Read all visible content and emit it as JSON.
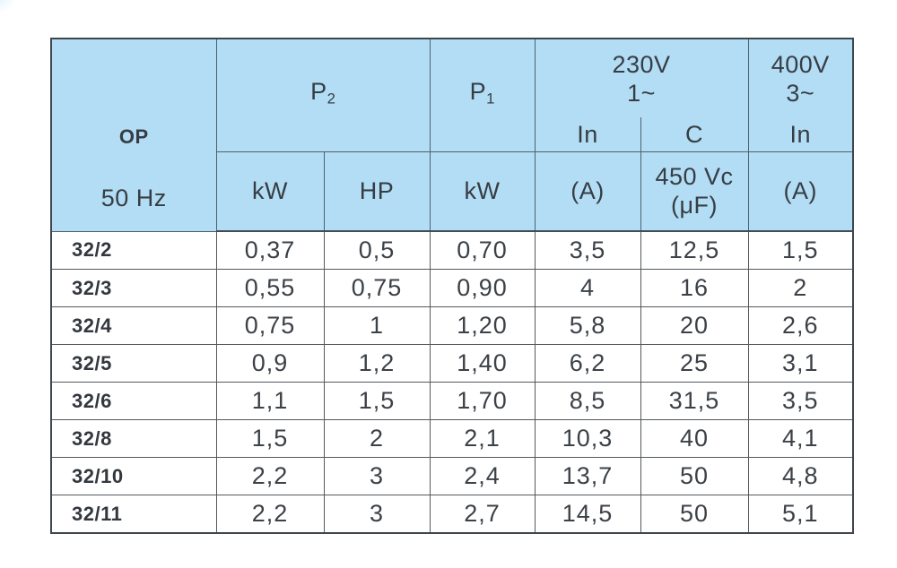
{
  "colors": {
    "header_bg": "#b2ddf4",
    "header_line": "#4d626e",
    "body_line": "#54585c",
    "outer_border": "#3f464d",
    "text": "#3c4147"
  },
  "table": {
    "header": {
      "op_title": "OP",
      "op_freq": "50 Hz",
      "p2_base": "P",
      "p2_sub": "2",
      "p1_base": "P",
      "p1_sub": "1",
      "group_230v_line1": "230V",
      "group_230v_line2": "1~",
      "group_400v_line1": "400V",
      "group_400v_line2": "3~",
      "in_230_label": "In",
      "c_label": "C",
      "in_400_label": "In",
      "p2_kw_unit": "kW",
      "p2_hp_unit": "HP",
      "p1_kw_unit": "kW",
      "in_230_unit": "(A)",
      "c_unit_line1": "450 Vc",
      "c_unit_line2": "(μF)",
      "in_400_unit": "(A)"
    },
    "rows": [
      {
        "model": "32/2",
        "p2_kw": "0,37",
        "p2_hp": "0,5",
        "p1_kw": "0,70",
        "in230_a": "3,5",
        "c_uf": "12,5",
        "in400_a": "1,5"
      },
      {
        "model": "32/3",
        "p2_kw": "0,55",
        "p2_hp": "0,75",
        "p1_kw": "0,90",
        "in230_a": "4",
        "c_uf": "16",
        "in400_a": "2"
      },
      {
        "model": "32/4",
        "p2_kw": "0,75",
        "p2_hp": "1",
        "p1_kw": "1,20",
        "in230_a": "5,8",
        "c_uf": "20",
        "in400_a": "2,6"
      },
      {
        "model": "32/5",
        "p2_kw": "0,9",
        "p2_hp": "1,2",
        "p1_kw": "1,40",
        "in230_a": "6,2",
        "c_uf": "25",
        "in400_a": "3,1"
      },
      {
        "model": "32/6",
        "p2_kw": "1,1",
        "p2_hp": "1,5",
        "p1_kw": "1,70",
        "in230_a": "8,5",
        "c_uf": "31,5",
        "in400_a": "3,5"
      },
      {
        "model": "32/8",
        "p2_kw": "1,5",
        "p2_hp": "2",
        "p1_kw": "2,1",
        "in230_a": "10,3",
        "c_uf": "40",
        "in400_a": "4,1"
      },
      {
        "model": "32/10",
        "p2_kw": "2,2",
        "p2_hp": "3",
        "p1_kw": "2,4",
        "in230_a": "13,7",
        "c_uf": "50",
        "in400_a": "4,8"
      },
      {
        "model": "32/11",
        "p2_kw": "2,2",
        "p2_hp": "3",
        "p1_kw": "2,7",
        "in230_a": "14,5",
        "c_uf": "50",
        "in400_a": "5,1"
      }
    ]
  }
}
